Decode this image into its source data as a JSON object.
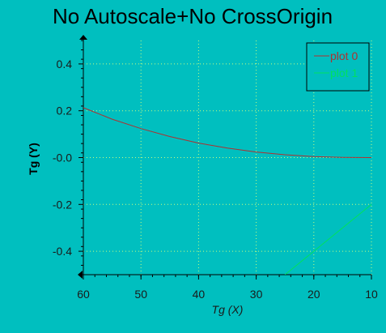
{
  "chart_data": {
    "type": "line",
    "title": "No Autoscale+No CrossOrigin",
    "xlabel": "Tg (X)",
    "ylabel": "Tg (Y)",
    "xlim": [
      60,
      10
    ],
    "ylim": [
      -0.5,
      0.5
    ],
    "x_reversed": true,
    "x_ticks": [
      {
        "value": 60,
        "label": "60"
      },
      {
        "value": 50,
        "label": "50"
      },
      {
        "value": 40,
        "label": "40"
      },
      {
        "value": 30,
        "label": "30"
      },
      {
        "value": 20,
        "label": "20"
      },
      {
        "value": 10,
        "label": "10"
      }
    ],
    "y_ticks": [
      {
        "value": 0.4,
        "label": "0.4"
      },
      {
        "value": 0.2,
        "label": "0.2"
      },
      {
        "value": 0.0,
        "label": "-0.0"
      },
      {
        "value": -0.2,
        "label": "-0.2"
      },
      {
        "value": -0.4,
        "label": "-0.4"
      }
    ],
    "grid": true,
    "grid_color": "#c8ff80",
    "legend_position": "top-right",
    "background_color": "#00bfbf",
    "series": [
      {
        "name": "plot 0",
        "color": "#b03030",
        "x": [
          60,
          55,
          50,
          45,
          40,
          35,
          30,
          25,
          20,
          15,
          10
        ],
        "y": [
          0.213,
          0.164,
          0.124,
          0.09,
          0.062,
          0.041,
          0.024,
          0.012,
          0.004,
          0.001,
          0.0
        ]
      },
      {
        "name": "plot 1",
        "color": "#00e060",
        "x": [
          25,
          20,
          15,
          10
        ],
        "y": [
          -0.5,
          -0.4,
          -0.3,
          -0.2
        ]
      }
    ]
  }
}
